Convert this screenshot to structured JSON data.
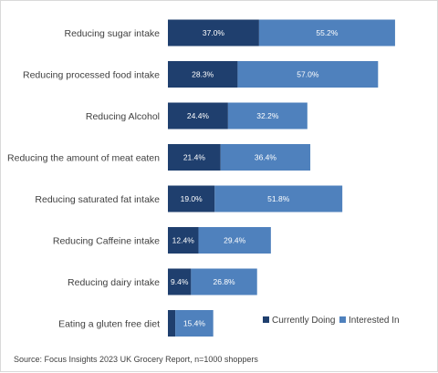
{
  "chart_data": {
    "type": "bar",
    "orientation": "horizontal",
    "stacked": true,
    "categories": [
      "Reducing sugar intake",
      "Reducing processed food intake",
      "Reducing Alcohol",
      "Reducing the amount of meat eaten",
      "Reducing saturated fat intake",
      "Reducing Caffeine intake",
      "Reducing dairy intake",
      "Eating a gluten free diet"
    ],
    "series": [
      {
        "name": "Currently Doing",
        "color": "#1f3f6e",
        "values": [
          37.0,
          28.3,
          24.4,
          21.4,
          19.0,
          12.4,
          9.4,
          3.0
        ],
        "labels": [
          "37.0%",
          "28.3%",
          "24.4%",
          "21.4%",
          "19.0%",
          "12.4%",
          "9.4%",
          ""
        ]
      },
      {
        "name": "Interested In",
        "color": "#4f81bd",
        "values": [
          55.2,
          57.0,
          32.2,
          36.4,
          51.8,
          29.4,
          26.8,
          15.4
        ],
        "labels": [
          "55.2%",
          "57.0%",
          "32.2%",
          "36.4%",
          "51.8%",
          "29.4%",
          "26.8%",
          "15.4%"
        ]
      }
    ],
    "grid": false,
    "legend_position": "bottom-right"
  },
  "source_note": "Source: Focus Insights 2023 UK Grocery Report, n=1000 shoppers"
}
